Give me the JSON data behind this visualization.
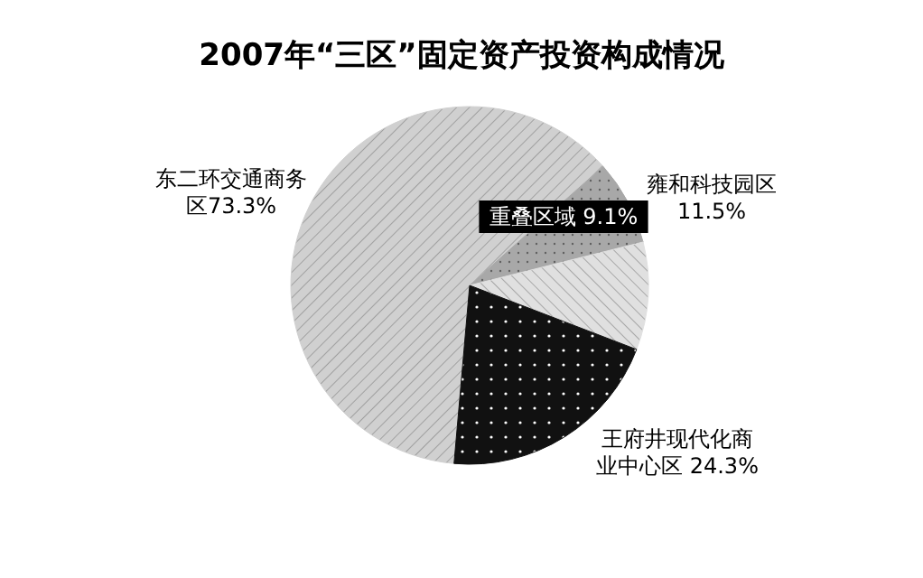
{
  "chart_data": {
    "type": "pie",
    "title": "2007年“三区”固定资产投资构成情况",
    "categories": [
      "东二环交通商务区",
      "重叠区域",
      "雍和科技园区",
      "王府井现代化商业中心区"
    ],
    "values": [
      73.3,
      9.1,
      11.5,
      24.3
    ],
    "colors": [
      "#d0d0d0",
      "#a8a8a8",
      "#e0e0e0",
      "#111111"
    ],
    "value_labels": [
      "73.3%",
      "9.1%",
      "11.5%",
      "24.3%"
    ]
  }
}
